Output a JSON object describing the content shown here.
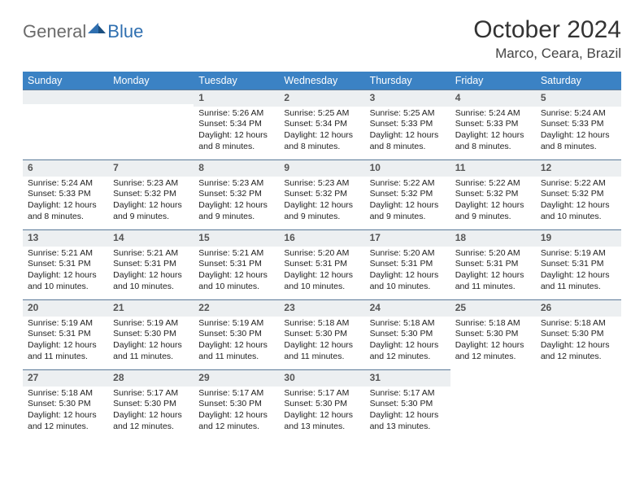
{
  "brand": {
    "part1": "General",
    "part2": "Blue",
    "text_color_general": "#6b6b6b",
    "text_color_blue": "#2f6fb0",
    "tri_color": "#2f6fb0"
  },
  "title": "October 2024",
  "location": "Marco, Ceara, Brazil",
  "colors": {
    "header_bg": "#3b82c4",
    "header_text": "#ffffff",
    "daynum_bg": "#eceff1",
    "daynum_border": "#5b7a99",
    "body_text": "#222222",
    "page_bg": "#ffffff"
  },
  "weekdays": [
    "Sunday",
    "Monday",
    "Tuesday",
    "Wednesday",
    "Thursday",
    "Friday",
    "Saturday"
  ],
  "layout": {
    "cols": 7,
    "rows": 5,
    "cell_font_size_pt": 8,
    "header_font_size_pt": 10,
    "title_font_size_pt": 22
  },
  "days": [
    {
      "num": "",
      "sunrise": "",
      "sunset": "",
      "daylight": ""
    },
    {
      "num": "",
      "sunrise": "",
      "sunset": "",
      "daylight": ""
    },
    {
      "num": "1",
      "sunrise": "Sunrise: 5:26 AM",
      "sunset": "Sunset: 5:34 PM",
      "daylight": "Daylight: 12 hours and 8 minutes."
    },
    {
      "num": "2",
      "sunrise": "Sunrise: 5:25 AM",
      "sunset": "Sunset: 5:34 PM",
      "daylight": "Daylight: 12 hours and 8 minutes."
    },
    {
      "num": "3",
      "sunrise": "Sunrise: 5:25 AM",
      "sunset": "Sunset: 5:33 PM",
      "daylight": "Daylight: 12 hours and 8 minutes."
    },
    {
      "num": "4",
      "sunrise": "Sunrise: 5:24 AM",
      "sunset": "Sunset: 5:33 PM",
      "daylight": "Daylight: 12 hours and 8 minutes."
    },
    {
      "num": "5",
      "sunrise": "Sunrise: 5:24 AM",
      "sunset": "Sunset: 5:33 PM",
      "daylight": "Daylight: 12 hours and 8 minutes."
    },
    {
      "num": "6",
      "sunrise": "Sunrise: 5:24 AM",
      "sunset": "Sunset: 5:33 PM",
      "daylight": "Daylight: 12 hours and 8 minutes."
    },
    {
      "num": "7",
      "sunrise": "Sunrise: 5:23 AM",
      "sunset": "Sunset: 5:32 PM",
      "daylight": "Daylight: 12 hours and 9 minutes."
    },
    {
      "num": "8",
      "sunrise": "Sunrise: 5:23 AM",
      "sunset": "Sunset: 5:32 PM",
      "daylight": "Daylight: 12 hours and 9 minutes."
    },
    {
      "num": "9",
      "sunrise": "Sunrise: 5:23 AM",
      "sunset": "Sunset: 5:32 PM",
      "daylight": "Daylight: 12 hours and 9 minutes."
    },
    {
      "num": "10",
      "sunrise": "Sunrise: 5:22 AM",
      "sunset": "Sunset: 5:32 PM",
      "daylight": "Daylight: 12 hours and 9 minutes."
    },
    {
      "num": "11",
      "sunrise": "Sunrise: 5:22 AM",
      "sunset": "Sunset: 5:32 PM",
      "daylight": "Daylight: 12 hours and 9 minutes."
    },
    {
      "num": "12",
      "sunrise": "Sunrise: 5:22 AM",
      "sunset": "Sunset: 5:32 PM",
      "daylight": "Daylight: 12 hours and 10 minutes."
    },
    {
      "num": "13",
      "sunrise": "Sunrise: 5:21 AM",
      "sunset": "Sunset: 5:31 PM",
      "daylight": "Daylight: 12 hours and 10 minutes."
    },
    {
      "num": "14",
      "sunrise": "Sunrise: 5:21 AM",
      "sunset": "Sunset: 5:31 PM",
      "daylight": "Daylight: 12 hours and 10 minutes."
    },
    {
      "num": "15",
      "sunrise": "Sunrise: 5:21 AM",
      "sunset": "Sunset: 5:31 PM",
      "daylight": "Daylight: 12 hours and 10 minutes."
    },
    {
      "num": "16",
      "sunrise": "Sunrise: 5:20 AM",
      "sunset": "Sunset: 5:31 PM",
      "daylight": "Daylight: 12 hours and 10 minutes."
    },
    {
      "num": "17",
      "sunrise": "Sunrise: 5:20 AM",
      "sunset": "Sunset: 5:31 PM",
      "daylight": "Daylight: 12 hours and 10 minutes."
    },
    {
      "num": "18",
      "sunrise": "Sunrise: 5:20 AM",
      "sunset": "Sunset: 5:31 PM",
      "daylight": "Daylight: 12 hours and 11 minutes."
    },
    {
      "num": "19",
      "sunrise": "Sunrise: 5:19 AM",
      "sunset": "Sunset: 5:31 PM",
      "daylight": "Daylight: 12 hours and 11 minutes."
    },
    {
      "num": "20",
      "sunrise": "Sunrise: 5:19 AM",
      "sunset": "Sunset: 5:31 PM",
      "daylight": "Daylight: 12 hours and 11 minutes."
    },
    {
      "num": "21",
      "sunrise": "Sunrise: 5:19 AM",
      "sunset": "Sunset: 5:30 PM",
      "daylight": "Daylight: 12 hours and 11 minutes."
    },
    {
      "num": "22",
      "sunrise": "Sunrise: 5:19 AM",
      "sunset": "Sunset: 5:30 PM",
      "daylight": "Daylight: 12 hours and 11 minutes."
    },
    {
      "num": "23",
      "sunrise": "Sunrise: 5:18 AM",
      "sunset": "Sunset: 5:30 PM",
      "daylight": "Daylight: 12 hours and 11 minutes."
    },
    {
      "num": "24",
      "sunrise": "Sunrise: 5:18 AM",
      "sunset": "Sunset: 5:30 PM",
      "daylight": "Daylight: 12 hours and 12 minutes."
    },
    {
      "num": "25",
      "sunrise": "Sunrise: 5:18 AM",
      "sunset": "Sunset: 5:30 PM",
      "daylight": "Daylight: 12 hours and 12 minutes."
    },
    {
      "num": "26",
      "sunrise": "Sunrise: 5:18 AM",
      "sunset": "Sunset: 5:30 PM",
      "daylight": "Daylight: 12 hours and 12 minutes."
    },
    {
      "num": "27",
      "sunrise": "Sunrise: 5:18 AM",
      "sunset": "Sunset: 5:30 PM",
      "daylight": "Daylight: 12 hours and 12 minutes."
    },
    {
      "num": "28",
      "sunrise": "Sunrise: 5:17 AM",
      "sunset": "Sunset: 5:30 PM",
      "daylight": "Daylight: 12 hours and 12 minutes."
    },
    {
      "num": "29",
      "sunrise": "Sunrise: 5:17 AM",
      "sunset": "Sunset: 5:30 PM",
      "daylight": "Daylight: 12 hours and 12 minutes."
    },
    {
      "num": "30",
      "sunrise": "Sunrise: 5:17 AM",
      "sunset": "Sunset: 5:30 PM",
      "daylight": "Daylight: 12 hours and 13 minutes."
    },
    {
      "num": "31",
      "sunrise": "Sunrise: 5:17 AM",
      "sunset": "Sunset: 5:30 PM",
      "daylight": "Daylight: 12 hours and 13 minutes."
    },
    {
      "num": "",
      "sunrise": "",
      "sunset": "",
      "daylight": "",
      "trailing": true
    },
    {
      "num": "",
      "sunrise": "",
      "sunset": "",
      "daylight": "",
      "trailing": true
    }
  ]
}
